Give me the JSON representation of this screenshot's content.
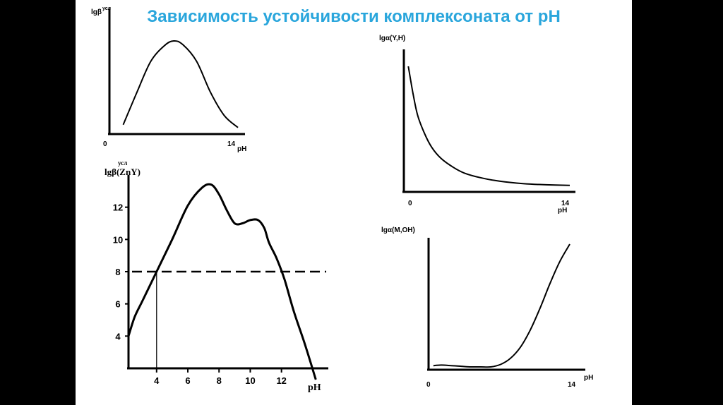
{
  "title": "Зависимость устойчивости комплексоната от pH",
  "colors": {
    "title": "#2aa6dc",
    "line": "#000000",
    "background": "#ffffff",
    "frame": "#000000"
  },
  "chart_data": [
    {
      "id": "top-left",
      "type": "line",
      "ylabel_main": "lgβ",
      "ylabel_sup": "усл",
      "xlabel": "pH",
      "tick_labels": [
        "0",
        "14"
      ],
      "xlim": [
        0,
        14
      ],
      "series": [
        {
          "x": [
            1.5,
            3,
            4.5,
            6,
            7.0,
            8,
            9.5,
            11,
            12.5,
            14
          ],
          "y": [
            0.1,
            0.45,
            0.78,
            0.95,
            1.0,
            0.96,
            0.78,
            0.45,
            0.2,
            0.07
          ]
        }
      ]
    },
    {
      "id": "top-right",
      "type": "line",
      "ylabel": "lgα(Y,H)",
      "xlabel": "pH",
      "tick_labels": [
        "0",
        "14"
      ],
      "xlim": [
        0,
        14
      ],
      "series": [
        {
          "x": [
            0.2,
            0.6,
            1.0,
            1.6,
            2.2,
            3,
            4,
            5,
            6.5,
            8,
            10,
            12,
            14
          ],
          "y": [
            1.0,
            0.78,
            0.6,
            0.45,
            0.34,
            0.25,
            0.18,
            0.13,
            0.09,
            0.065,
            0.045,
            0.035,
            0.03
          ]
        }
      ]
    },
    {
      "id": "bottom-left",
      "type": "line",
      "ylabel_main": "lgβ(ZnY)",
      "ylabel_sup": "усл",
      "xlabel": "pH",
      "x_ticks": [
        "4",
        "6",
        "8",
        "10",
        "12"
      ],
      "y_ticks": [
        "4",
        "6",
        "8",
        "10",
        "12"
      ],
      "xlim": [
        2.2,
        15
      ],
      "ylim": [
        2,
        14
      ],
      "threshold": 8,
      "series": [
        {
          "x": [
            2.2,
            2.6,
            3.1,
            4,
            5,
            6,
            6.9,
            7.5,
            8.0,
            8.5,
            9.0,
            9.5,
            10.0,
            10.5,
            10.9,
            11.2,
            11.7,
            12.2,
            12.8,
            13.5,
            14.2
          ],
          "y": [
            4.0,
            5.2,
            6.2,
            8.0,
            10.0,
            12.1,
            13.2,
            13.4,
            12.8,
            11.8,
            11.0,
            11.0,
            11.2,
            11.2,
            10.7,
            9.8,
            8.8,
            7.5,
            5.5,
            3.5,
            1.3
          ]
        }
      ]
    },
    {
      "id": "bottom-right",
      "type": "line",
      "ylabel": "lgα(M,OH)",
      "xlabel": "pH",
      "tick_labels": [
        "0",
        "14"
      ],
      "xlim": [
        0,
        14
      ],
      "series": [
        {
          "x": [
            0.2,
            1,
            2,
            3,
            4,
            5,
            6,
            7,
            8,
            9,
            10,
            11,
            12,
            13,
            14
          ],
          "y": [
            0.01,
            0.015,
            0.01,
            0.005,
            0.0,
            0.0,
            0.0,
            0.02,
            0.07,
            0.16,
            0.3,
            0.48,
            0.68,
            0.86,
            1.0
          ]
        }
      ]
    }
  ]
}
